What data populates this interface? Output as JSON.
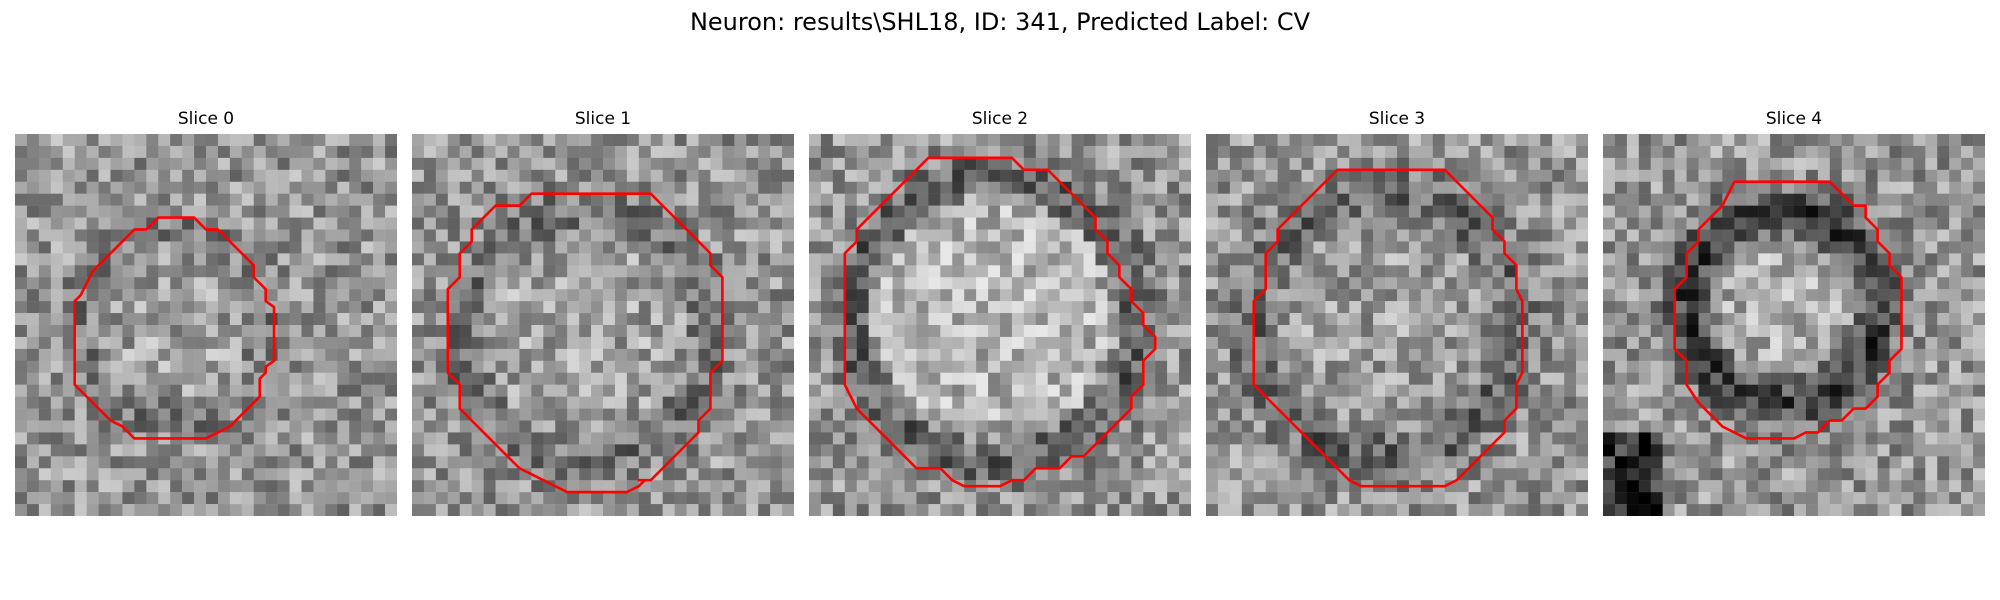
{
  "title": "Neuron: results\\SHL18, ID: 341, Predicted Label: CV",
  "colors": {
    "background": "#ffffff",
    "contour": "#ff0000"
  },
  "slices": [
    {
      "label": "Slice 0"
    },
    {
      "label": "Slice 1"
    },
    {
      "label": "Slice 2"
    },
    {
      "label": "Slice 3"
    },
    {
      "label": "Slice 4"
    }
  ]
}
